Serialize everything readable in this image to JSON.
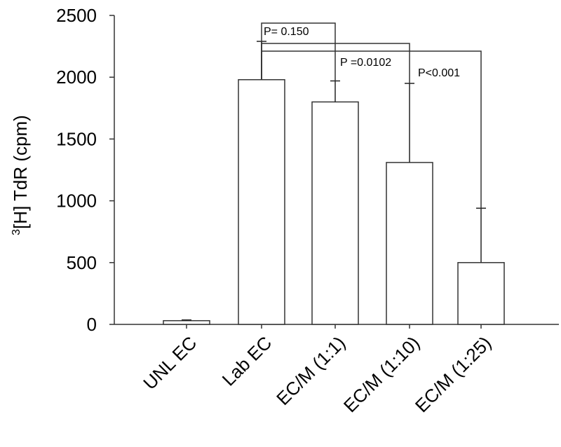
{
  "chart_data": {
    "type": "bar",
    "title": "",
    "xlabel": "",
    "ylabel": "[H] TdR (cpm)",
    "ylabel_superscript": "3",
    "ylim": [
      0,
      2500
    ],
    "yticks": [
      0,
      500,
      1000,
      1500,
      2000,
      2500
    ],
    "ytick_labels": [
      "0",
      "500",
      "1000",
      "1500",
      "2000",
      "2500"
    ],
    "grid": false,
    "legend": null,
    "categories": [
      "UNL EC",
      "Lab EC",
      "EC/M (1:1)",
      "EC/M (1:10)",
      "EC/M (1:25)"
    ],
    "values": [
      30,
      1980,
      1800,
      1310,
      500
    ],
    "error_upper": [
      36,
      2290,
      1970,
      1950,
      940
    ],
    "annotations": [
      {
        "text": "P= 0.150",
        "from": "Lab EC",
        "to": "EC/M (1:1)"
      },
      {
        "text": "P =0.0102",
        "from": "Lab EC",
        "to": "EC/M (1:10)"
      },
      {
        "text": "P<0.001",
        "from": "Lab EC",
        "to": "EC/M (1:25)"
      }
    ]
  }
}
